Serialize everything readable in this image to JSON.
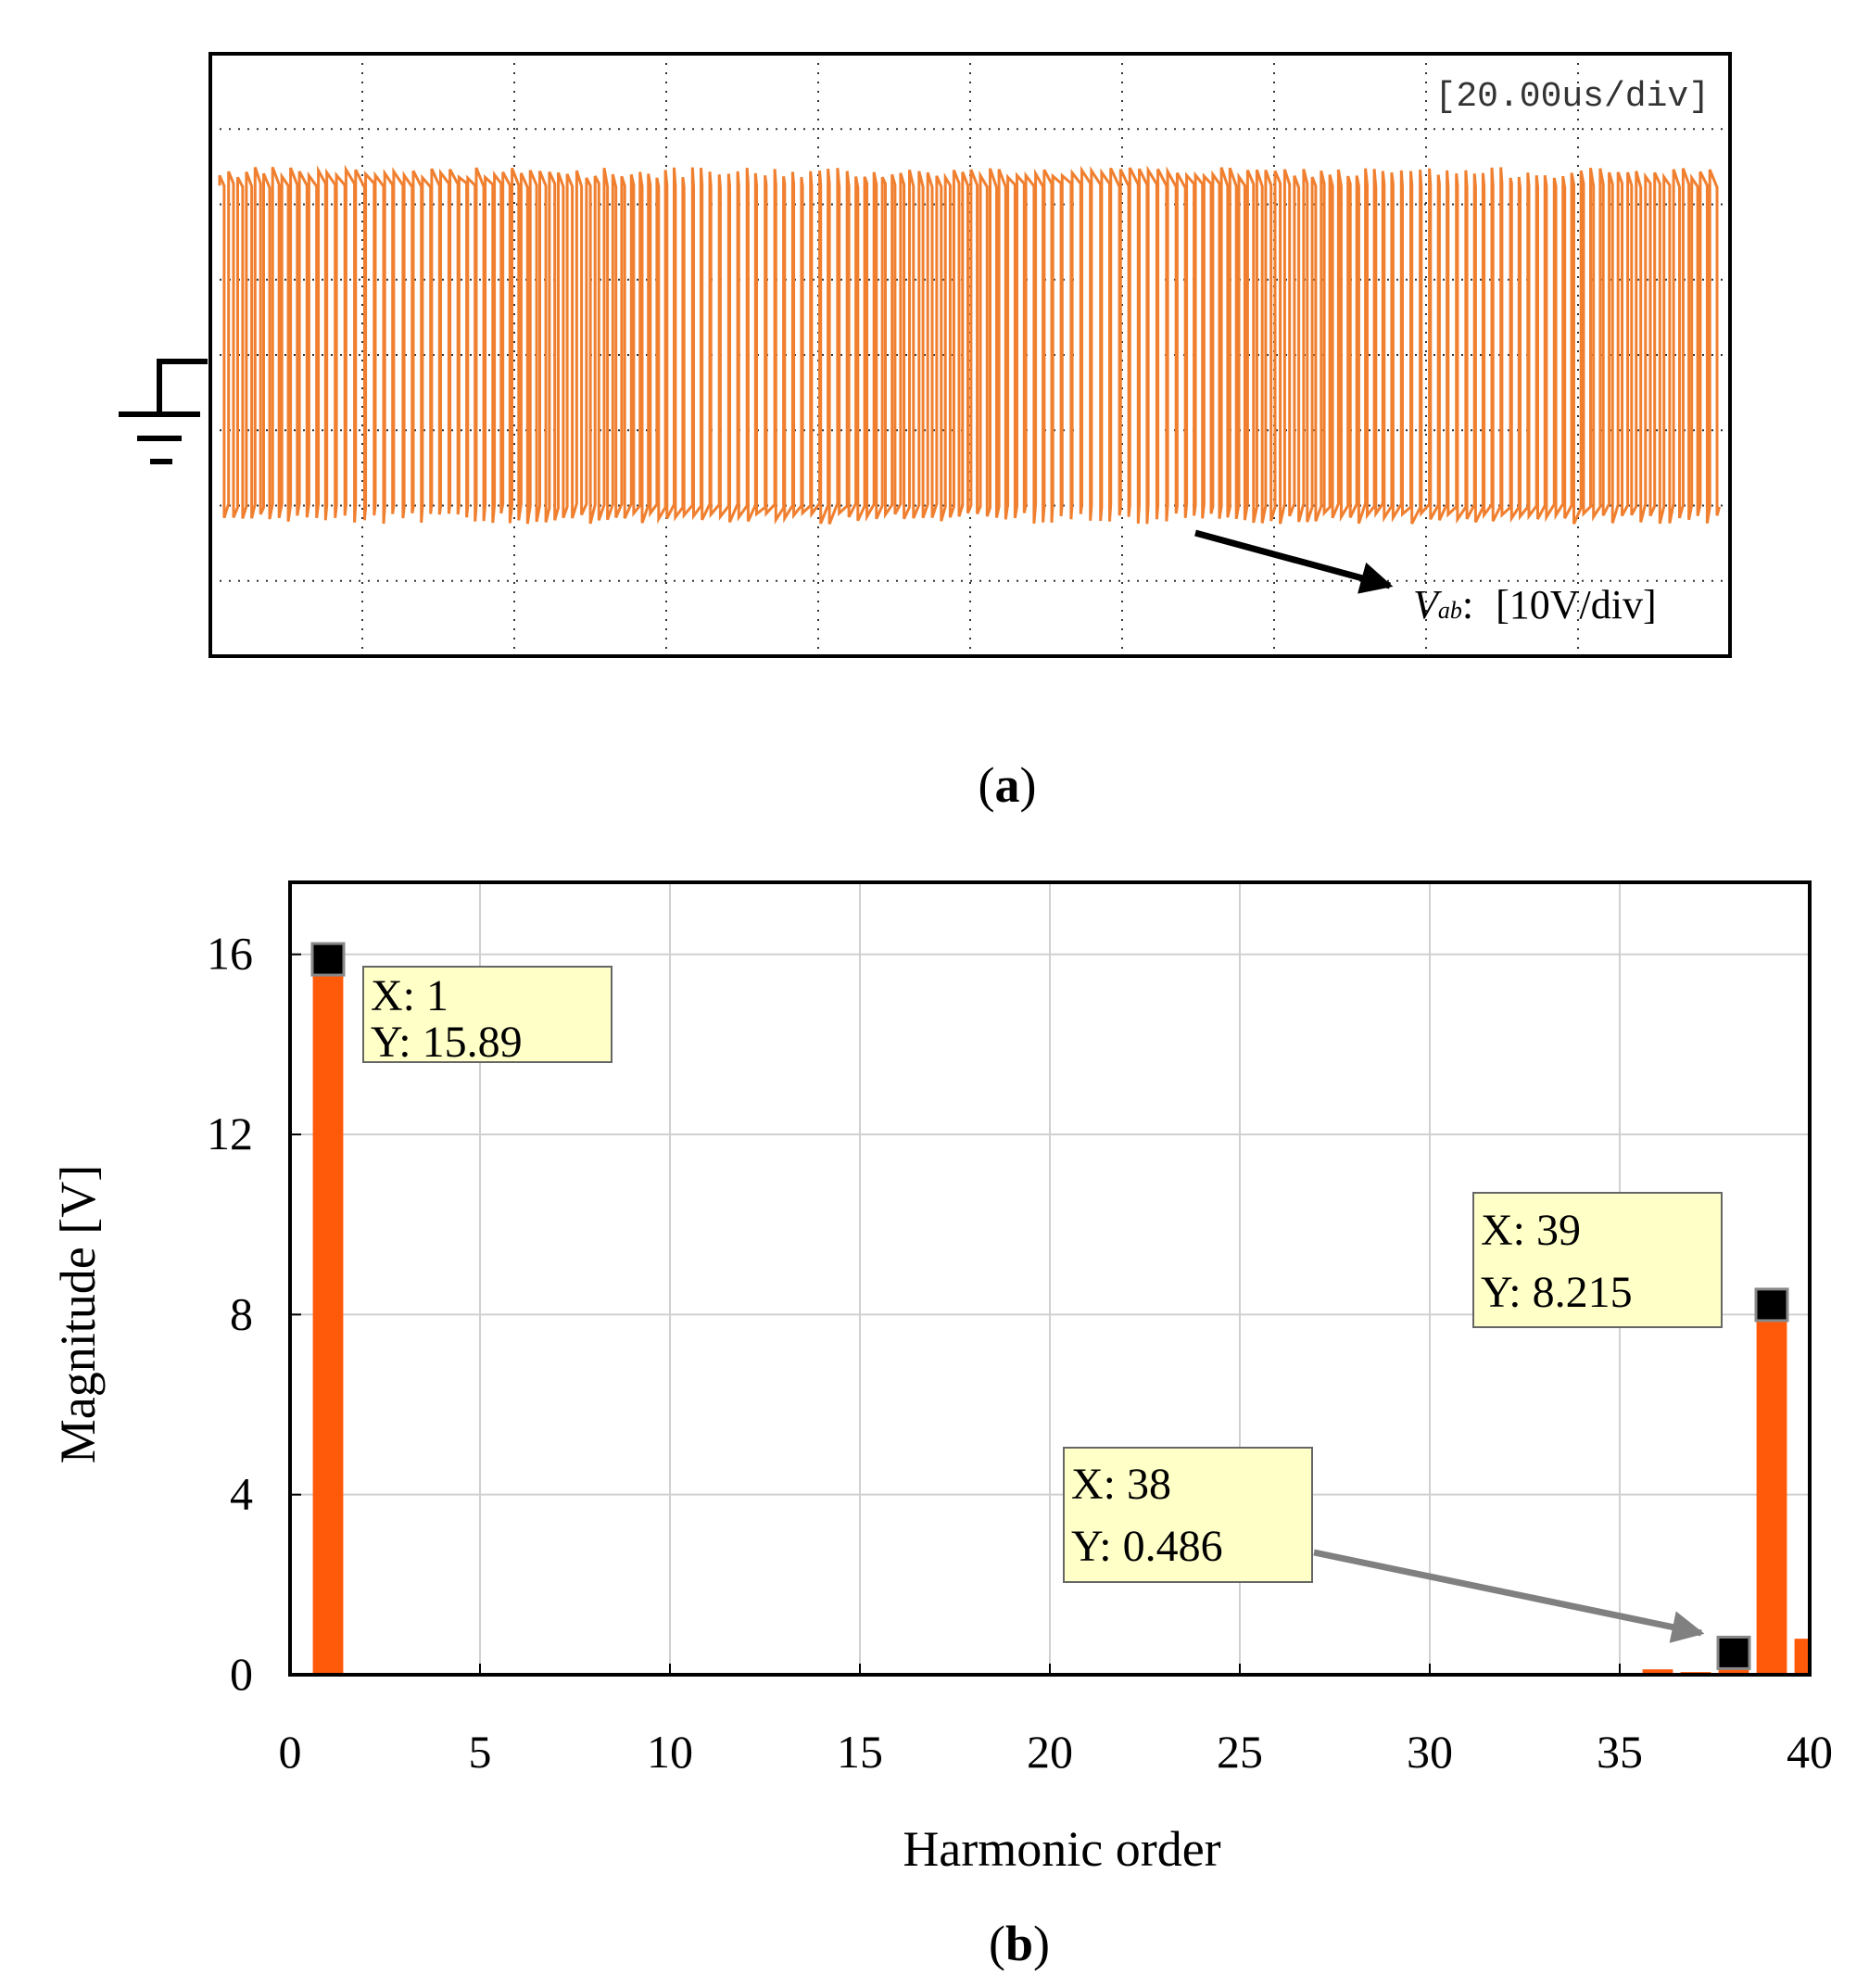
{
  "colors": {
    "waveform": "#f08030",
    "bar": "#ff5a0a",
    "annotation_bg": "#ffffc8",
    "grid_a": "#333333",
    "grid_b": "#d0d0d0",
    "arrow": "#808080"
  },
  "panel_a": {
    "caption_open": "(",
    "caption_letter": "a",
    "caption_close": ")",
    "timebase": "[20.00us/div]",
    "channel_symbol": "V",
    "channel_subscript": "ab",
    "channel_colon": ":",
    "channel_scale": "[10V/div]",
    "ground_icon": "ground-icon"
  },
  "panel_b": {
    "caption_open": "(",
    "caption_letter": "b",
    "caption_close": ")",
    "annotations": [
      {
        "x_label": "X: 1",
        "y_label": "Y: 15.89"
      },
      {
        "x_label": "X: 39",
        "y_label": "Y: 8.215"
      },
      {
        "x_label": "X: 38",
        "y_label": "Y: 0.486"
      }
    ]
  },
  "chart_data": [
    {
      "type": "line",
      "title": "",
      "description_of_signal": "two-level PWM switching waveform",
      "time_per_div_us": 20,
      "volts_per_div": 10,
      "divisions_x": 10,
      "divisions_y": 8,
      "high_level_div": 2.25,
      "low_level_div": -2.0
    },
    {
      "type": "bar",
      "xlabel": "Harmonic order",
      "ylabel": "Magnitude [V]",
      "xlim": [
        0,
        40
      ],
      "ylim": [
        0,
        17.6
      ],
      "xticks": [
        0,
        5,
        10,
        15,
        20,
        25,
        30,
        35,
        40
      ],
      "yticks": [
        0,
        4,
        8,
        12,
        16
      ],
      "x": [
        1,
        14,
        22,
        36,
        37,
        38,
        39,
        40
      ],
      "values": [
        15.89,
        0.02,
        0.03,
        0.12,
        0.06,
        0.486,
        8.215,
        0.8
      ],
      "markers": [
        {
          "x": 1,
          "y": 15.89
        },
        {
          "x": 38,
          "y": 0.486
        },
        {
          "x": 39,
          "y": 8.215
        }
      ]
    }
  ]
}
